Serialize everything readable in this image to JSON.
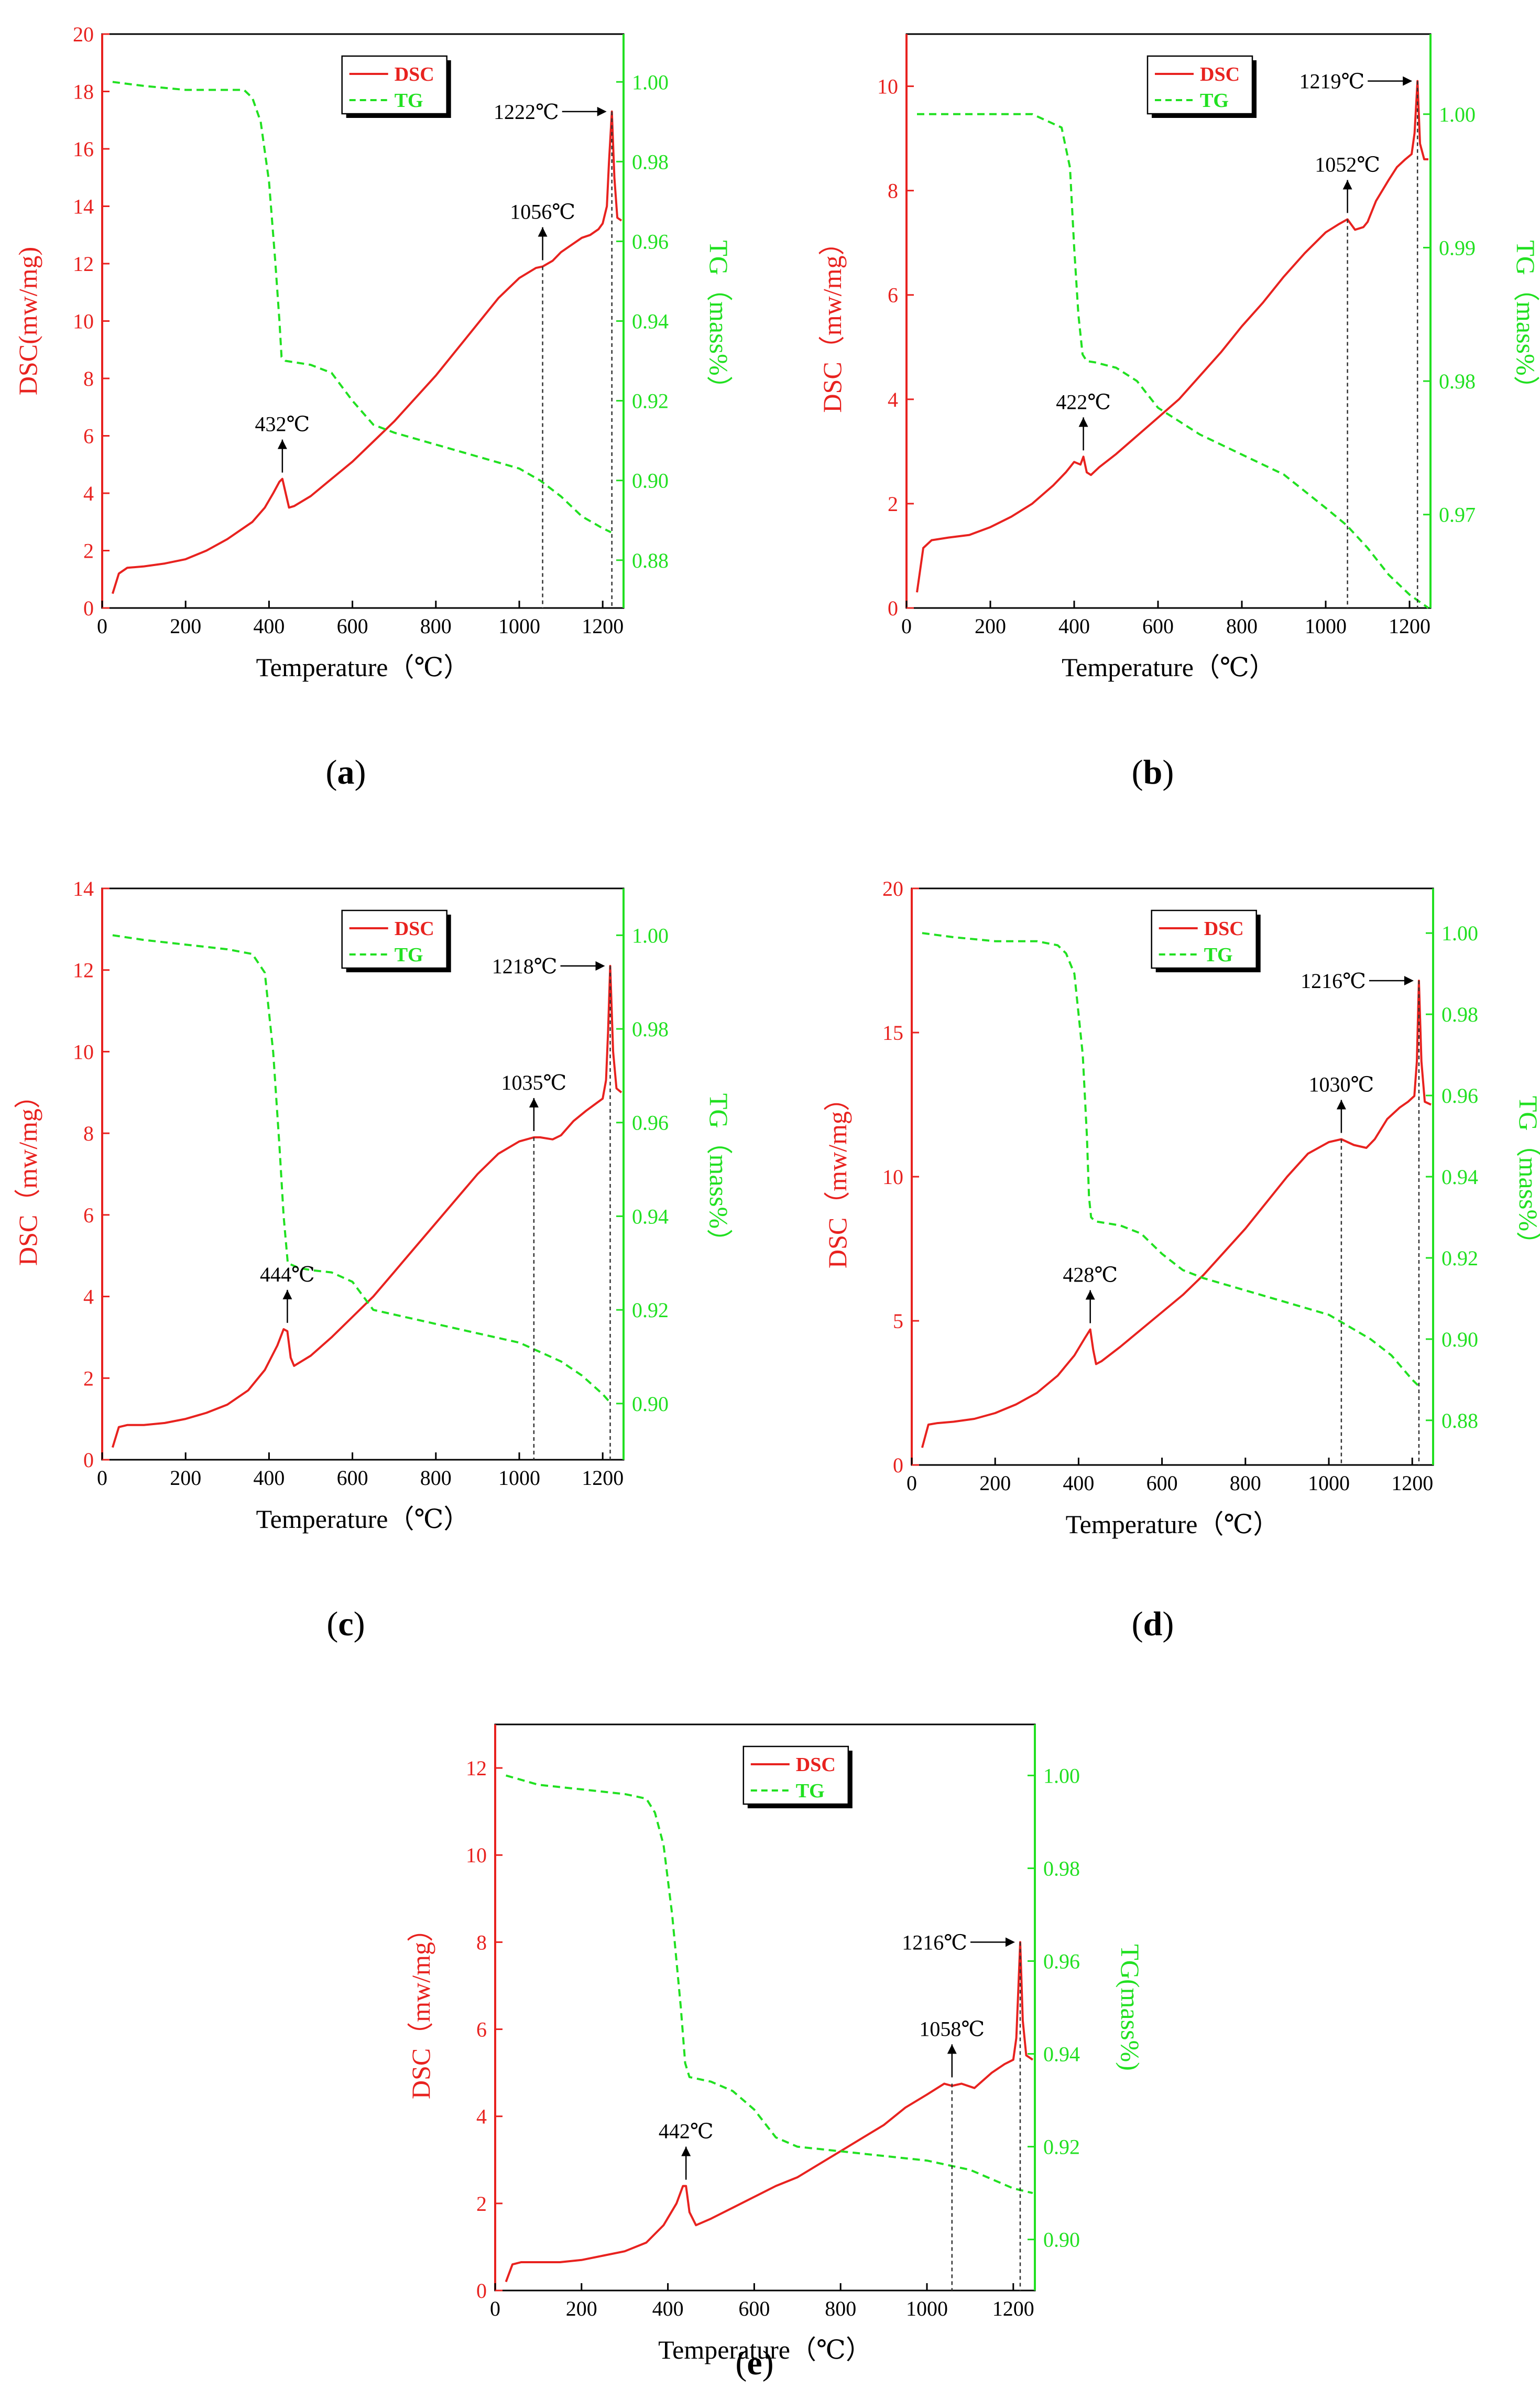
{
  "figure": {
    "captions": [
      "(a)",
      "(b)",
      "(c)",
      "(d)",
      "(e)"
    ]
  },
  "colors": {
    "dsc": "#e8221f",
    "tg": "#21e021",
    "axis": "#000000",
    "guide": "#333333"
  },
  "chart_data": [
    {
      "type": "line",
      "panel": "a",
      "xlabel": "Temperature（℃）",
      "ylabel_left": "DSC(mw/mg)",
      "ylabel_right": "TG（mass%）",
      "xlim": [
        0,
        1250
      ],
      "xticks": [
        0,
        200,
        400,
        600,
        800,
        1000,
        1200
      ],
      "ylim_left": [
        0,
        20
      ],
      "yticks_left": [
        0,
        2,
        4,
        6,
        8,
        10,
        12,
        14,
        16,
        18,
        20
      ],
      "ylim_right": [
        0.868,
        1.012
      ],
      "yticks_right": [
        0.88,
        0.9,
        0.92,
        0.94,
        0.96,
        0.98,
        1.0
      ],
      "legend": [
        "DSC",
        "TG"
      ],
      "series": [
        {
          "name": "DSC",
          "axis": "left",
          "x": [
            25,
            40,
            60,
            100,
            150,
            200,
            250,
            300,
            330,
            360,
            390,
            410,
            425,
            432,
            440,
            448,
            460,
            500,
            550,
            600,
            650,
            700,
            750,
            800,
            850,
            900,
            950,
            1000,
            1040,
            1056,
            1080,
            1100,
            1120,
            1150,
            1170,
            1190,
            1200,
            1210,
            1215,
            1222,
            1228,
            1235,
            1245
          ],
          "y": [
            0.5,
            1.2,
            1.4,
            1.45,
            1.55,
            1.7,
            2.0,
            2.4,
            2.7,
            3.0,
            3.5,
            4.0,
            4.4,
            4.5,
            4.0,
            3.5,
            3.55,
            3.9,
            4.5,
            5.1,
            5.8,
            6.5,
            7.3,
            8.1,
            9.0,
            9.9,
            10.8,
            11.5,
            11.85,
            11.9,
            12.1,
            12.4,
            12.6,
            12.9,
            13.0,
            13.2,
            13.4,
            14.0,
            15.5,
            17.3,
            15.0,
            13.6,
            13.5
          ]
        },
        {
          "name": "TG",
          "axis": "right",
          "x": [
            25,
            100,
            200,
            300,
            340,
            360,
            380,
            400,
            415,
            425,
            430,
            440,
            500,
            550,
            600,
            650,
            700,
            800,
            900,
            1000,
            1050,
            1100,
            1150,
            1200,
            1220
          ],
          "y": [
            1.0,
            0.999,
            0.998,
            0.998,
            0.998,
            0.996,
            0.99,
            0.975,
            0.955,
            0.94,
            0.931,
            0.93,
            0.929,
            0.927,
            0.92,
            0.914,
            0.912,
            0.909,
            0.906,
            0.903,
            0.9,
            0.896,
            0.891,
            0.888,
            0.887
          ]
        }
      ],
      "annotations": [
        {
          "label": "432℃",
          "x": 432,
          "y": 4.5,
          "arrow": "up"
        },
        {
          "label": "1056℃",
          "x": 1056,
          "y": 11.9,
          "arrow": "up",
          "guide": true
        },
        {
          "label": "1222℃",
          "x": 1222,
          "y": 17.3,
          "arrow": "left",
          "guide": true
        }
      ]
    },
    {
      "type": "line",
      "panel": "b",
      "xlabel": "Temperature（℃）",
      "ylabel_left": "DSC（mw/mg）",
      "ylabel_right": "TG（mass%）",
      "xlim": [
        0,
        1250
      ],
      "xticks": [
        0,
        200,
        400,
        600,
        800,
        1000,
        1200
      ],
      "ylim_left": [
        0,
        11
      ],
      "yticks_left": [
        0,
        2,
        4,
        6,
        8,
        10
      ],
      "ylim_right": [
        0.963,
        1.006
      ],
      "yticks_right": [
        0.97,
        0.98,
        0.99,
        1.0
      ],
      "legend": [
        "DSC",
        "TG"
      ],
      "series": [
        {
          "name": "DSC",
          "axis": "left",
          "x": [
            25,
            40,
            60,
            100,
            150,
            200,
            250,
            300,
            350,
            380,
            400,
            415,
            422,
            430,
            440,
            460,
            500,
            550,
            600,
            650,
            700,
            750,
            800,
            850,
            900,
            950,
            1000,
            1030,
            1052,
            1070,
            1090,
            1100,
            1120,
            1150,
            1170,
            1190,
            1205,
            1212,
            1219,
            1225,
            1235,
            1245
          ],
          "y": [
            0.3,
            1.15,
            1.3,
            1.35,
            1.4,
            1.55,
            1.75,
            2.0,
            2.35,
            2.6,
            2.8,
            2.75,
            2.9,
            2.6,
            2.55,
            2.7,
            2.95,
            3.3,
            3.65,
            4.0,
            4.45,
            4.9,
            5.4,
            5.85,
            6.35,
            6.8,
            7.2,
            7.35,
            7.45,
            7.25,
            7.3,
            7.4,
            7.8,
            8.2,
            8.45,
            8.6,
            8.7,
            9.1,
            10.1,
            8.9,
            8.6,
            8.6
          ]
        },
        {
          "name": "TG",
          "axis": "right",
          "x": [
            25,
            100,
            200,
            300,
            370,
            390,
            400,
            410,
            420,
            430,
            450,
            500,
            550,
            600,
            650,
            700,
            800,
            900,
            1000,
            1050,
            1100,
            1150,
            1200,
            1245
          ],
          "y": [
            1.0,
            1.0,
            1.0,
            1.0,
            0.999,
            0.996,
            0.99,
            0.985,
            0.982,
            0.9815,
            0.9814,
            0.981,
            0.98,
            0.978,
            0.977,
            0.976,
            0.9745,
            0.973,
            0.9705,
            0.9692,
            0.9675,
            0.9655,
            0.964,
            0.963
          ]
        }
      ],
      "annotations": [
        {
          "label": "422℃",
          "x": 422,
          "y": 2.9,
          "arrow": "up"
        },
        {
          "label": "1052℃",
          "x": 1052,
          "y": 7.45,
          "arrow": "up",
          "guide": true
        },
        {
          "label": "1219℃",
          "x": 1219,
          "y": 10.1,
          "arrow": "left",
          "guide": true
        }
      ]
    },
    {
      "type": "line",
      "panel": "c",
      "xlabel": "Temperature（℃）",
      "ylabel_left": "DSC（mw/mg）",
      "ylabel_right": "TG（mass%）",
      "xlim": [
        0,
        1250
      ],
      "xticks": [
        0,
        200,
        400,
        600,
        800,
        1000,
        1200
      ],
      "ylim_left": [
        0,
        14
      ],
      "yticks_left": [
        0,
        2,
        4,
        6,
        8,
        10,
        12,
        14
      ],
      "ylim_right": [
        0.888,
        1.01
      ],
      "yticks_right": [
        0.9,
        0.92,
        0.94,
        0.96,
        0.98,
        1.0
      ],
      "legend": [
        "DSC",
        "TG"
      ],
      "series": [
        {
          "name": "DSC",
          "axis": "left",
          "x": [
            25,
            40,
            60,
            100,
            150,
            200,
            250,
            300,
            350,
            390,
            420,
            435,
            444,
            452,
            460,
            500,
            550,
            600,
            650,
            700,
            750,
            800,
            850,
            900,
            950,
            1000,
            1035,
            1050,
            1080,
            1100,
            1130,
            1160,
            1180,
            1200,
            1208,
            1213,
            1218,
            1225,
            1233,
            1245
          ],
          "y": [
            0.3,
            0.8,
            0.85,
            0.85,
            0.9,
            1.0,
            1.15,
            1.35,
            1.7,
            2.2,
            2.8,
            3.2,
            3.15,
            2.5,
            2.3,
            2.55,
            3.0,
            3.5,
            4.0,
            4.6,
            5.2,
            5.8,
            6.4,
            7.0,
            7.5,
            7.8,
            7.9,
            7.9,
            7.85,
            7.95,
            8.3,
            8.55,
            8.7,
            8.85,
            9.3,
            10.5,
            12.1,
            10.0,
            9.1,
            9.0
          ]
        },
        {
          "name": "TG",
          "axis": "right",
          "x": [
            25,
            100,
            200,
            300,
            360,
            390,
            410,
            425,
            435,
            445,
            470,
            500,
            550,
            600,
            650,
            700,
            800,
            900,
            1000,
            1050,
            1100,
            1150,
            1200,
            1220
          ],
          "y": [
            1.0,
            0.999,
            0.998,
            0.997,
            0.996,
            0.992,
            0.975,
            0.955,
            0.94,
            0.93,
            0.929,
            0.9285,
            0.928,
            0.926,
            0.92,
            0.919,
            0.917,
            0.915,
            0.913,
            0.911,
            0.909,
            0.906,
            0.902,
            0.9
          ]
        }
      ],
      "annotations": [
        {
          "label": "444℃",
          "x": 444,
          "y": 3.2,
          "arrow": "up"
        },
        {
          "label": "1035℃",
          "x": 1035,
          "y": 7.9,
          "arrow": "up",
          "guide": true
        },
        {
          "label": "1218℃",
          "x": 1218,
          "y": 12.1,
          "arrow": "left",
          "guide": true
        }
      ]
    },
    {
      "type": "line",
      "panel": "d",
      "xlabel": "Temperature（℃）",
      "ylabel_left": "DSC（mw/mg）",
      "ylabel_right": "TG（mass%）",
      "xlim": [
        0,
        1250
      ],
      "xticks": [
        0,
        200,
        400,
        600,
        800,
        1000,
        1200
      ],
      "ylim_left": [
        0,
        20
      ],
      "yticks_left": [
        0,
        5,
        10,
        15,
        20
      ],
      "ylim_right": [
        0.869,
        1.011
      ],
      "yticks_right": [
        0.88,
        0.9,
        0.92,
        0.94,
        0.96,
        0.98,
        1.0
      ],
      "legend": [
        "DSC",
        "TG"
      ],
      "series": [
        {
          "name": "DSC",
          "axis": "left",
          "x": [
            25,
            40,
            60,
            100,
            150,
            200,
            250,
            300,
            350,
            390,
            415,
            428,
            435,
            442,
            455,
            500,
            550,
            600,
            650,
            700,
            750,
            800,
            850,
            900,
            950,
            1000,
            1030,
            1060,
            1090,
            1110,
            1140,
            1170,
            1190,
            1205,
            1211,
            1216,
            1222,
            1230,
            1245
          ],
          "y": [
            0.6,
            1.4,
            1.45,
            1.5,
            1.6,
            1.8,
            2.1,
            2.5,
            3.1,
            3.8,
            4.4,
            4.7,
            4.0,
            3.5,
            3.6,
            4.1,
            4.7,
            5.3,
            5.9,
            6.6,
            7.4,
            8.2,
            9.1,
            10.0,
            10.8,
            11.2,
            11.3,
            11.1,
            11.0,
            11.3,
            12.0,
            12.4,
            12.6,
            12.8,
            14.0,
            16.8,
            14.0,
            12.6,
            12.5
          ]
        },
        {
          "name": "TG",
          "axis": "right",
          "x": [
            25,
            100,
            200,
            300,
            350,
            370,
            390,
            410,
            420,
            425,
            430,
            440,
            500,
            550,
            600,
            650,
            700,
            800,
            900,
            1000,
            1050,
            1100,
            1150,
            1200,
            1220
          ],
          "y": [
            1.0,
            0.999,
            0.998,
            0.998,
            0.997,
            0.995,
            0.99,
            0.97,
            0.95,
            0.935,
            0.93,
            0.929,
            0.928,
            0.926,
            0.921,
            0.917,
            0.915,
            0.912,
            0.909,
            0.906,
            0.903,
            0.9,
            0.896,
            0.89,
            0.888
          ]
        }
      ],
      "annotations": [
        {
          "label": "428℃",
          "x": 428,
          "y": 4.7,
          "arrow": "up"
        },
        {
          "label": "1030℃",
          "x": 1030,
          "y": 11.3,
          "arrow": "up",
          "guide": true
        },
        {
          "label": "1216℃",
          "x": 1216,
          "y": 16.8,
          "arrow": "left",
          "guide": true
        }
      ]
    },
    {
      "type": "line",
      "panel": "e",
      "xlabel": "Temperature（℃）",
      "ylabel_left": "DSC（mw/mg）",
      "ylabel_right": "TG(mass%)",
      "xlim": [
        0,
        1250
      ],
      "xticks": [
        0,
        200,
        400,
        600,
        800,
        1000,
        1200
      ],
      "ylim_left": [
        0,
        13
      ],
      "yticks_left": [
        0,
        2,
        4,
        6,
        8,
        10,
        12
      ],
      "ylim_right": [
        0.889,
        1.011
      ],
      "yticks_right": [
        0.9,
        0.92,
        0.94,
        0.96,
        0.98,
        1.0
      ],
      "legend": [
        "DSC",
        "TG"
      ],
      "series": [
        {
          "name": "DSC",
          "axis": "left",
          "x": [
            25,
            40,
            60,
            100,
            150,
            200,
            250,
            300,
            350,
            390,
            420,
            435,
            442,
            450,
            465,
            500,
            550,
            600,
            650,
            700,
            750,
            800,
            850,
            900,
            950,
            1000,
            1040,
            1058,
            1080,
            1110,
            1150,
            1180,
            1200,
            1207,
            1212,
            1216,
            1222,
            1230,
            1245
          ],
          "y": [
            0.2,
            0.6,
            0.65,
            0.65,
            0.65,
            0.7,
            0.8,
            0.9,
            1.1,
            1.5,
            2.0,
            2.4,
            2.4,
            1.8,
            1.5,
            1.65,
            1.9,
            2.15,
            2.4,
            2.6,
            2.9,
            3.2,
            3.5,
            3.8,
            4.2,
            4.5,
            4.75,
            4.7,
            4.75,
            4.65,
            5.0,
            5.2,
            5.3,
            5.8,
            7.0,
            8.0,
            6.2,
            5.4,
            5.3
          ]
        },
        {
          "name": "TG",
          "axis": "right",
          "x": [
            25,
            100,
            200,
            300,
            350,
            370,
            390,
            410,
            430,
            440,
            450,
            500,
            550,
            600,
            650,
            700,
            800,
            900,
            1000,
            1050,
            1100,
            1150,
            1200,
            1245
          ],
          "y": [
            1.0,
            0.998,
            0.997,
            0.996,
            0.995,
            0.992,
            0.985,
            0.97,
            0.95,
            0.938,
            0.935,
            0.934,
            0.932,
            0.928,
            0.922,
            0.92,
            0.919,
            0.918,
            0.917,
            0.916,
            0.915,
            0.913,
            0.911,
            0.91
          ]
        }
      ],
      "annotations": [
        {
          "label": "442℃",
          "x": 442,
          "y": 2.4,
          "arrow": "up"
        },
        {
          "label": "1058℃",
          "x": 1058,
          "y": 4.75,
          "arrow": "up",
          "guide": true
        },
        {
          "label": "1216℃",
          "x": 1216,
          "y": 8.0,
          "arrow": "left",
          "guide": true
        }
      ]
    }
  ]
}
